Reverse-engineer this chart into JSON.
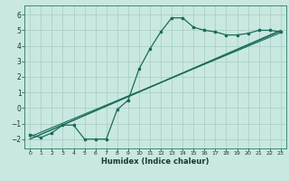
{
  "title": "",
  "xlabel": "Humidex (Indice chaleur)",
  "ylabel": "",
  "bg_color": "#c8e8e0",
  "grid_color": "#a8ccc4",
  "line_color": "#1a6b5a",
  "xlim": [
    -0.5,
    23.5
  ],
  "ylim": [
    -2.6,
    6.6
  ],
  "xticks": [
    0,
    1,
    2,
    3,
    4,
    5,
    6,
    7,
    8,
    9,
    10,
    11,
    12,
    13,
    14,
    15,
    16,
    17,
    18,
    19,
    20,
    21,
    22,
    23
  ],
  "yticks": [
    -2,
    -1,
    0,
    1,
    2,
    3,
    4,
    5,
    6
  ],
  "main_x": [
    0,
    1,
    2,
    3,
    4,
    5,
    6,
    7,
    8,
    9,
    10,
    11,
    12,
    13,
    14,
    15,
    16,
    17,
    18,
    19,
    20,
    21,
    22,
    23
  ],
  "main_y": [
    -1.7,
    -1.9,
    -1.6,
    -1.1,
    -1.1,
    -2.0,
    -2.0,
    -2.0,
    -0.1,
    0.5,
    2.5,
    3.8,
    4.9,
    5.8,
    5.8,
    5.2,
    5.0,
    4.9,
    4.7,
    4.7,
    4.8,
    5.0,
    5.0,
    4.9
  ],
  "line1_x": [
    0,
    23
  ],
  "line1_y": [
    -2.0,
    5.0
  ],
  "line2_x": [
    0,
    23
  ],
  "line2_y": [
    -2.0,
    4.95
  ],
  "line3_x": [
    0,
    23
  ],
  "line3_y": [
    -1.85,
    4.85
  ],
  "xlabel_fontsize": 6.0,
  "tick_fontsize_x": 4.5,
  "tick_fontsize_y": 5.5
}
